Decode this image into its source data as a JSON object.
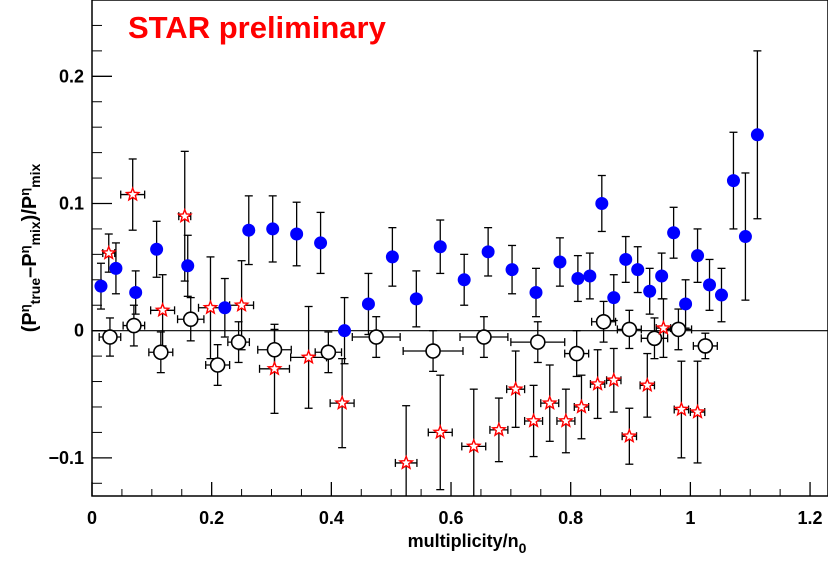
{
  "chart_data": {
    "type": "scatter",
    "annotation": "STAR preliminary",
    "annotation_color": "#ff0000",
    "xlabel": {
      "main": "multiplicity/n",
      "sub": "0"
    },
    "ylabel": {
      "parts": [
        {
          "t": "(P",
          "k": "n"
        },
        {
          "t": "η",
          "k": "sup"
        },
        {
          "t": "true",
          "k": "sub"
        },
        {
          "t": "–P",
          "k": "n"
        },
        {
          "t": "η",
          "k": "sup"
        },
        {
          "t": "mix",
          "k": "sub"
        },
        {
          "t": ")/P",
          "k": "n"
        },
        {
          "t": "η",
          "k": "sup"
        },
        {
          "t": "mix",
          "k": "sub"
        }
      ]
    },
    "xlim": [
      0,
      1.23
    ],
    "ylim": [
      -0.13,
      0.26
    ],
    "xticks": [
      {
        "v": 0,
        "label": "0"
      },
      {
        "v": 0.2,
        "label": "0.2"
      },
      {
        "v": 0.4,
        "label": "0.4"
      },
      {
        "v": 0.6,
        "label": "0.6"
      },
      {
        "v": 0.8,
        "label": "0.8"
      },
      {
        "v": 1.0,
        "label": "1"
      },
      {
        "v": 1.2,
        "label": "1.2"
      }
    ],
    "yticks": [
      {
        "v": -0.1,
        "label": "−0.1"
      },
      {
        "v": 0,
        "label": "0"
      },
      {
        "v": 0.1,
        "label": "0.1"
      },
      {
        "v": 0.2,
        "label": "0.2"
      }
    ],
    "reference_line_y": 0,
    "series": [
      {
        "marker": "filled-circle",
        "color": "#0000ff",
        "points": [
          {
            "x": 0.015,
            "y": 0.035,
            "ey": 0.018
          },
          {
            "x": 0.04,
            "y": 0.049,
            "ey": 0.02
          },
          {
            "x": 0.073,
            "y": 0.03,
            "ey": 0.017
          },
          {
            "x": 0.108,
            "y": 0.064,
            "ey": 0.022
          },
          {
            "x": 0.16,
            "y": 0.051,
            "ey": 0.024
          },
          {
            "x": 0.222,
            "y": 0.018,
            "ey": 0.023
          },
          {
            "x": 0.262,
            "y": 0.079,
            "ey": 0.027
          },
          {
            "x": 0.302,
            "y": 0.08,
            "ey": 0.026
          },
          {
            "x": 0.342,
            "y": 0.076,
            "ey": 0.025
          },
          {
            "x": 0.382,
            "y": 0.069,
            "ey": 0.024
          },
          {
            "x": 0.422,
            "y": 0.0,
            "ey": 0.026
          },
          {
            "x": 0.462,
            "y": 0.021,
            "ey": 0.024
          },
          {
            "x": 0.502,
            "y": 0.058,
            "ey": 0.023
          },
          {
            "x": 0.542,
            "y": 0.025,
            "ey": 0.022
          },
          {
            "x": 0.582,
            "y": 0.066,
            "ey": 0.021
          },
          {
            "x": 0.622,
            "y": 0.04,
            "ey": 0.02
          },
          {
            "x": 0.662,
            "y": 0.062,
            "ey": 0.019
          },
          {
            "x": 0.702,
            "y": 0.048,
            "ey": 0.019
          },
          {
            "x": 0.742,
            "y": 0.03,
            "ey": 0.019
          },
          {
            "x": 0.782,
            "y": 0.054,
            "ey": 0.019
          },
          {
            "x": 0.812,
            "y": 0.041,
            "ey": 0.018
          },
          {
            "x": 0.832,
            "y": 0.043,
            "ey": 0.018
          },
          {
            "x": 0.852,
            "y": 0.1,
            "ey": 0.022
          },
          {
            "x": 0.872,
            "y": 0.026,
            "ey": 0.018
          },
          {
            "x": 0.892,
            "y": 0.056,
            "ey": 0.018
          },
          {
            "x": 0.912,
            "y": 0.048,
            "ey": 0.018
          },
          {
            "x": 0.932,
            "y": 0.031,
            "ey": 0.018
          },
          {
            "x": 0.952,
            "y": 0.043,
            "ey": 0.018
          },
          {
            "x": 0.972,
            "y": 0.077,
            "ey": 0.02
          },
          {
            "x": 0.992,
            "y": 0.021,
            "ey": 0.019
          },
          {
            "x": 1.012,
            "y": 0.059,
            "ey": 0.021
          },
          {
            "x": 1.032,
            "y": 0.036,
            "ey": 0.02
          },
          {
            "x": 1.052,
            "y": 0.028,
            "ey": 0.021
          },
          {
            "x": 1.072,
            "y": 0.118,
            "ey": 0.038
          },
          {
            "x": 1.092,
            "y": 0.074,
            "ey": 0.05
          },
          {
            "x": 1.112,
            "y": 0.154,
            "ey": 0.066
          }
        ]
      },
      {
        "marker": "open-circle",
        "color": "#000000",
        "points": [
          {
            "x": 0.03,
            "y": -0.005,
            "ey": 0.015,
            "ex": 0.018
          },
          {
            "x": 0.07,
            "y": 0.004,
            "ey": 0.016,
            "ex": 0.018
          },
          {
            "x": 0.115,
            "y": -0.017,
            "ey": 0.016,
            "ex": 0.02
          },
          {
            "x": 0.165,
            "y": 0.009,
            "ey": 0.017,
            "ex": 0.022
          },
          {
            "x": 0.21,
            "y": -0.027,
            "ey": 0.016,
            "ex": 0.02
          },
          {
            "x": 0.245,
            "y": -0.009,
            "ey": 0.016,
            "ex": 0.018
          },
          {
            "x": 0.305,
            "y": -0.015,
            "ey": 0.016,
            "ex": 0.028
          },
          {
            "x": 0.395,
            "y": -0.017,
            "ey": 0.016,
            "ex": 0.022
          },
          {
            "x": 0.475,
            "y": -0.005,
            "ey": 0.016,
            "ex": 0.04
          },
          {
            "x": 0.57,
            "y": -0.016,
            "ey": 0.016,
            "ex": 0.05
          },
          {
            "x": 0.655,
            "y": -0.005,
            "ey": 0.016,
            "ex": 0.04
          },
          {
            "x": 0.745,
            "y": -0.009,
            "ey": 0.016,
            "ex": 0.045
          },
          {
            "x": 0.81,
            "y": -0.018,
            "ey": 0.018,
            "ex": 0.02
          },
          {
            "x": 0.855,
            "y": 0.007,
            "ey": 0.016,
            "ex": 0.02
          },
          {
            "x": 0.898,
            "y": 0.001,
            "ey": 0.015,
            "ex": 0.02
          },
          {
            "x": 0.94,
            "y": -0.006,
            "ey": 0.016,
            "ex": 0.022
          },
          {
            "x": 0.98,
            "y": 0.001,
            "ey": 0.016,
            "ex": 0.022
          },
          {
            "x": 1.025,
            "y": -0.012,
            "ey": 0.01,
            "ex": 0.02
          }
        ]
      },
      {
        "marker": "open-star",
        "color": "#ff0000",
        "points": [
          {
            "x": 0.028,
            "y": 0.061,
            "ey": 0.015,
            "ex": 0.01
          },
          {
            "x": 0.068,
            "y": 0.107,
            "ey": 0.028,
            "ex": 0.02
          },
          {
            "x": 0.118,
            "y": 0.016,
            "ey": 0.028,
            "ex": 0.02
          },
          {
            "x": 0.155,
            "y": 0.09,
            "ey": 0.051,
            "ex": 0.01
          },
          {
            "x": 0.198,
            "y": 0.018,
            "ey": 0.04,
            "ex": 0.02
          },
          {
            "x": 0.25,
            "y": 0.02,
            "ey": 0.035,
            "ex": 0.02
          },
          {
            "x": 0.305,
            "y": -0.03,
            "ey": 0.035,
            "ex": 0.025
          },
          {
            "x": 0.362,
            "y": -0.021,
            "ey": 0.04,
            "ex": 0.03
          },
          {
            "x": 0.418,
            "y": -0.057,
            "ey": 0.035,
            "ex": 0.02
          },
          {
            "x": 0.525,
            "y": -0.104,
            "ey": 0.045,
            "ex": 0.018
          },
          {
            "x": 0.582,
            "y": -0.08,
            "ey": 0.045,
            "ex": 0.02
          },
          {
            "x": 0.638,
            "y": -0.091,
            "ey": 0.045,
            "ex": 0.02
          },
          {
            "x": 0.68,
            "y": -0.078,
            "ey": 0.025,
            "ex": 0.015
          },
          {
            "x": 0.708,
            "y": -0.046,
            "ey": 0.03,
            "ex": 0.015
          },
          {
            "x": 0.738,
            "y": -0.071,
            "ey": 0.028,
            "ex": 0.015
          },
          {
            "x": 0.765,
            "y": -0.057,
            "ey": 0.03,
            "ex": 0.015
          },
          {
            "x": 0.792,
            "y": -0.071,
            "ey": 0.025,
            "ex": 0.015
          },
          {
            "x": 0.818,
            "y": -0.06,
            "ey": 0.025,
            "ex": 0.012
          },
          {
            "x": 0.845,
            "y": -0.042,
            "ey": 0.027,
            "ex": 0.012
          },
          {
            "x": 0.872,
            "y": -0.039,
            "ey": 0.025,
            "ex": 0.012
          },
          {
            "x": 0.898,
            "y": -0.083,
            "ey": 0.022,
            "ex": 0.012
          },
          {
            "x": 0.928,
            "y": -0.043,
            "ey": 0.025,
            "ex": 0.012
          },
          {
            "x": 0.955,
            "y": 0.002,
            "ey": 0.023,
            "ex": 0.012
          },
          {
            "x": 0.985,
            "y": -0.062,
            "ey": 0.038,
            "ex": 0.012
          },
          {
            "x": 1.012,
            "y": -0.064,
            "ey": 0.04,
            "ex": 0.012
          }
        ]
      }
    ]
  }
}
